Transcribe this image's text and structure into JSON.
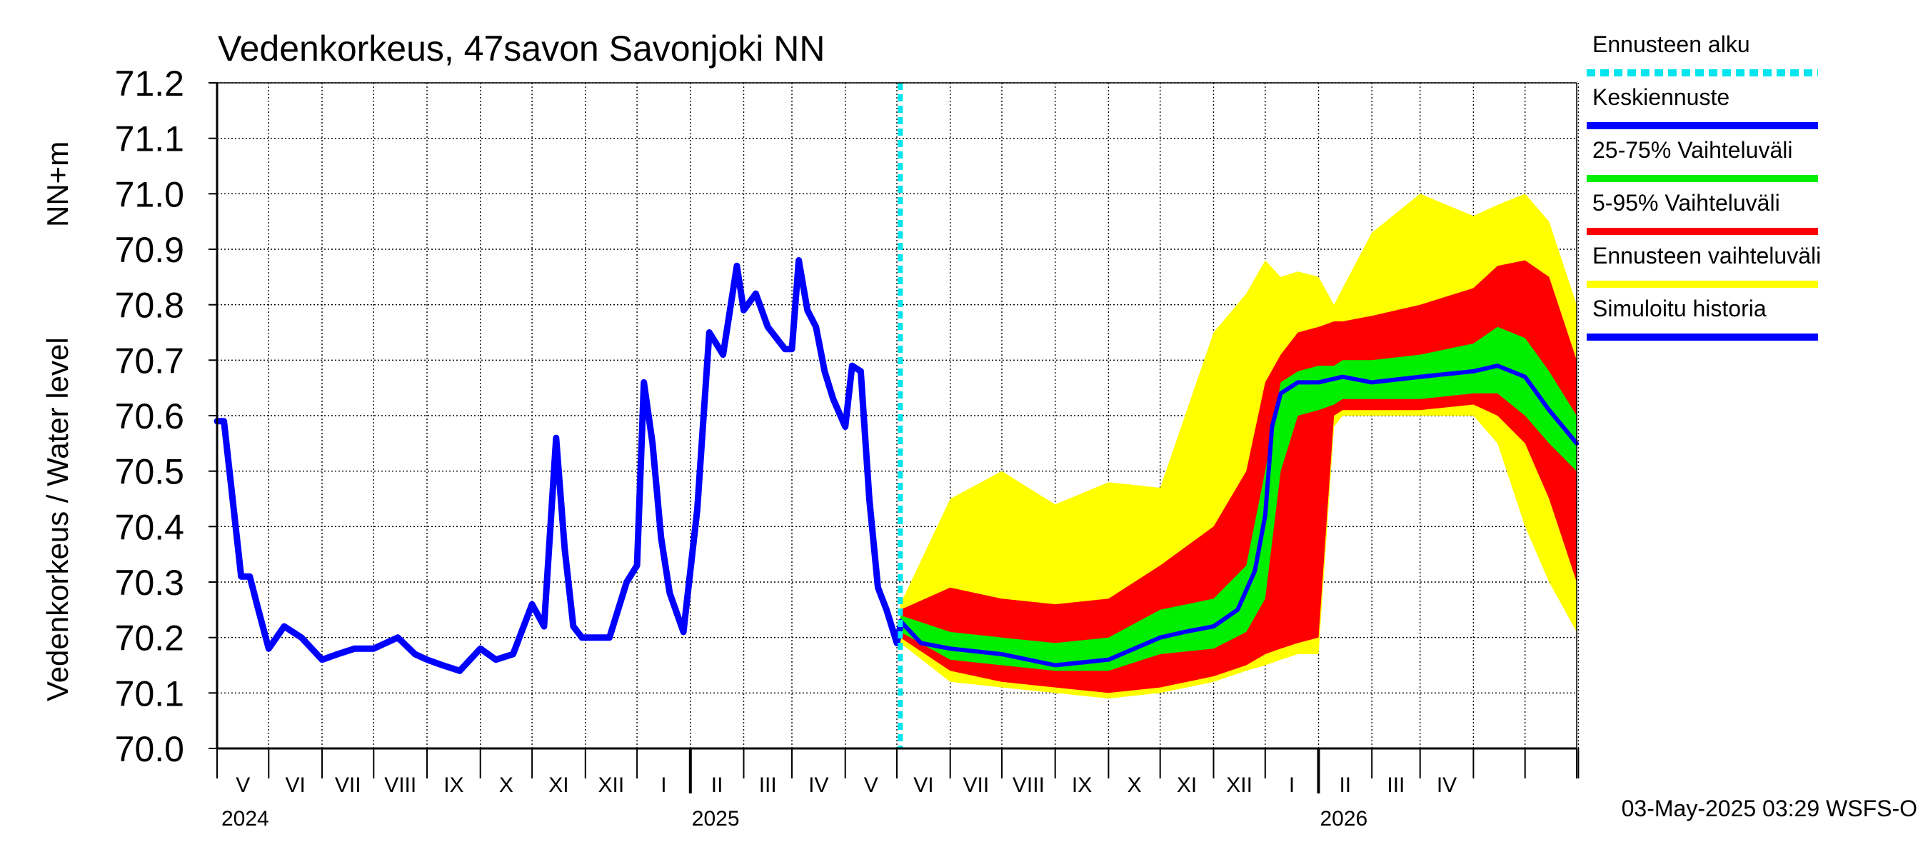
{
  "chart_data": {
    "type": "area",
    "title": "Vedenkorkeus, 47savon Savonjoki NN",
    "ylabel_main": "Vedenkorkeus / Water level",
    "ylabel_unit": "NN+m",
    "ylim": [
      70.0,
      71.2
    ],
    "y_ticks": [
      "70.0",
      "70.1",
      "70.2",
      "70.3",
      "70.4",
      "70.5",
      "70.6",
      "70.7",
      "70.8",
      "70.9",
      "71.0",
      "71.1",
      "71.2"
    ],
    "x_range": [
      "2024-04-01",
      "2026-05-31"
    ],
    "forecast_start": "2025-05-03",
    "month_labels": [
      "V",
      "VI",
      "VII",
      "VIII",
      "IX",
      "X",
      "XI",
      "XII",
      "I",
      "II",
      "III",
      "IV",
      "V",
      "VI",
      "VII",
      "VIII",
      "IX",
      "X",
      "XI",
      "XII",
      "I",
      "II",
      "III",
      "IV"
    ],
    "year_labels": [
      "2024",
      "2025",
      "2026"
    ],
    "grid": true,
    "footer": "03-May-2025 03:29 WSFS-O",
    "legend": [
      {
        "label": "Ennusteen alku",
        "color": "#00e5ee",
        "style": "dashed"
      },
      {
        "label": "Keskiennuste",
        "color": "#0000ff",
        "style": "solid"
      },
      {
        "label": "25-75% Vaihteluväli",
        "color": "#00ee00",
        "style": "solid"
      },
      {
        "label": "5-95% Vaihteluväli",
        "color": "#ff0000",
        "style": "solid"
      },
      {
        "label": "Ennusteen vaihteluväli",
        "color": "#ffff00",
        "style": "solid"
      },
      {
        "label": "Simuloitu historia",
        "color": "#0000ff",
        "style": "solid"
      }
    ],
    "colors": {
      "history": "#0000ff",
      "median": "#0000ff",
      "p25_75": "#00ee00",
      "p5_95": "#ff0000",
      "range": "#ffff00",
      "forecast_start": "#00e5ee"
    },
    "series": [
      {
        "name": "Simuloitu historia",
        "x": [
          "2024-04-01",
          "2024-04-05",
          "2024-04-10",
          "2024-04-15",
          "2024-04-20",
          "2024-04-25",
          "2024-05-01",
          "2024-05-10",
          "2024-05-20",
          "2024-06-01",
          "2024-06-10",
          "2024-06-20",
          "2024-07-01",
          "2024-07-15",
          "2024-07-25",
          "2024-08-01",
          "2024-08-10",
          "2024-08-20",
          "2024-09-01",
          "2024-09-10",
          "2024-09-20",
          "2024-10-01",
          "2024-10-08",
          "2024-10-15",
          "2024-10-20",
          "2024-10-25",
          "2024-10-30",
          "2024-11-01",
          "2024-11-15",
          "2024-11-25",
          "2024-12-01",
          "2024-12-05",
          "2024-12-10",
          "2024-12-15",
          "2024-12-20",
          "2024-12-28",
          "2025-01-05",
          "2025-01-12",
          "2025-01-20",
          "2025-01-28",
          "2025-02-01",
          "2025-02-08",
          "2025-02-15",
          "2025-02-25",
          "2025-03-01",
          "2025-03-05",
          "2025-03-10",
          "2025-03-15",
          "2025-03-20",
          "2025-03-25",
          "2025-04-01",
          "2025-04-05",
          "2025-04-10",
          "2025-04-15",
          "2025-04-20",
          "2025-04-25",
          "2025-05-01",
          "2025-05-03"
        ],
        "values": [
          70.59,
          70.59,
          70.45,
          70.31,
          70.31,
          70.25,
          70.18,
          70.22,
          70.2,
          70.16,
          70.17,
          70.18,
          70.18,
          70.2,
          70.17,
          70.16,
          70.15,
          70.14,
          70.18,
          70.16,
          70.17,
          70.26,
          70.22,
          70.56,
          70.36,
          70.22,
          70.2,
          70.2,
          70.2,
          70.3,
          70.33,
          70.66,
          70.55,
          70.38,
          70.28,
          70.21,
          70.43,
          70.75,
          70.71,
          70.87,
          70.79,
          70.82,
          70.76,
          70.72,
          70.72,
          70.88,
          70.79,
          70.76,
          70.68,
          70.63,
          70.58,
          70.69,
          70.68,
          70.45,
          70.29,
          70.25,
          70.19,
          70.22
        ]
      },
      {
        "name": "Keskiennuste",
        "x": [
          "2025-05-03",
          "2025-05-15",
          "2025-06-01",
          "2025-07-01",
          "2025-08-01",
          "2025-09-01",
          "2025-10-01",
          "2025-10-15",
          "2025-11-01",
          "2025-11-15",
          "2025-11-25",
          "2025-12-01",
          "2025-12-05",
          "2025-12-10",
          "2025-12-20",
          "2026-01-01",
          "2026-01-15",
          "2026-02-01",
          "2026-03-01",
          "2026-04-01",
          "2026-04-15",
          "2026-05-01",
          "2026-05-15",
          "2026-05-31"
        ],
        "values": [
          70.23,
          70.19,
          70.18,
          70.17,
          70.15,
          70.16,
          70.2,
          70.21,
          70.22,
          70.25,
          70.32,
          70.42,
          70.58,
          70.64,
          70.66,
          70.66,
          70.67,
          70.66,
          70.67,
          70.68,
          70.69,
          70.67,
          70.61,
          70.55
        ]
      }
    ],
    "bands": {
      "x": [
        "2025-05-03",
        "2025-06-01",
        "2025-07-01",
        "2025-08-01",
        "2025-09-01",
        "2025-10-01",
        "2025-11-01",
        "2025-11-20",
        "2025-12-01",
        "2025-12-10",
        "2025-12-20",
        "2026-01-01",
        "2026-01-10",
        "2026-01-15",
        "2026-02-01",
        "2026-03-01",
        "2026-04-01",
        "2026-04-15",
        "2026-05-01",
        "2026-05-15",
        "2026-05-31"
      ],
      "p25_75": {
        "low": [
          70.21,
          70.16,
          70.15,
          70.14,
          70.14,
          70.17,
          70.18,
          70.21,
          70.27,
          70.5,
          70.6,
          70.61,
          70.62,
          70.63,
          70.63,
          70.63,
          70.64,
          70.64,
          70.6,
          70.55,
          70.5
        ],
        "high": [
          70.24,
          70.21,
          70.2,
          70.19,
          70.2,
          70.25,
          70.27,
          70.33,
          70.5,
          70.66,
          70.68,
          70.69,
          70.69,
          70.7,
          70.7,
          70.71,
          70.73,
          70.76,
          70.74,
          70.68,
          70.6
        ]
      },
      "p5_95": {
        "low": [
          70.2,
          70.14,
          70.12,
          70.11,
          70.1,
          70.11,
          70.13,
          70.15,
          70.17,
          70.18,
          70.19,
          70.2,
          70.6,
          70.61,
          70.61,
          70.61,
          70.62,
          70.6,
          70.55,
          70.45,
          70.3
        ],
        "high": [
          70.25,
          70.29,
          70.27,
          70.26,
          70.27,
          70.33,
          70.4,
          70.5,
          70.66,
          70.71,
          70.75,
          70.76,
          70.77,
          70.77,
          70.78,
          70.8,
          70.83,
          70.87,
          70.88,
          70.85,
          70.7
        ]
      },
      "range": {
        "low": [
          70.19,
          70.12,
          70.11,
          70.1,
          70.09,
          70.1,
          70.12,
          70.14,
          70.15,
          70.16,
          70.17,
          70.17,
          70.58,
          70.6,
          70.6,
          70.6,
          70.6,
          70.55,
          70.4,
          70.3,
          70.21
        ],
        "high": [
          70.26,
          70.45,
          70.5,
          70.44,
          70.48,
          70.47,
          70.75,
          70.82,
          70.88,
          70.85,
          70.86,
          70.85,
          70.8,
          70.83,
          70.93,
          71.0,
          70.96,
          70.98,
          71.0,
          70.95,
          70.8
        ]
      }
    }
  }
}
